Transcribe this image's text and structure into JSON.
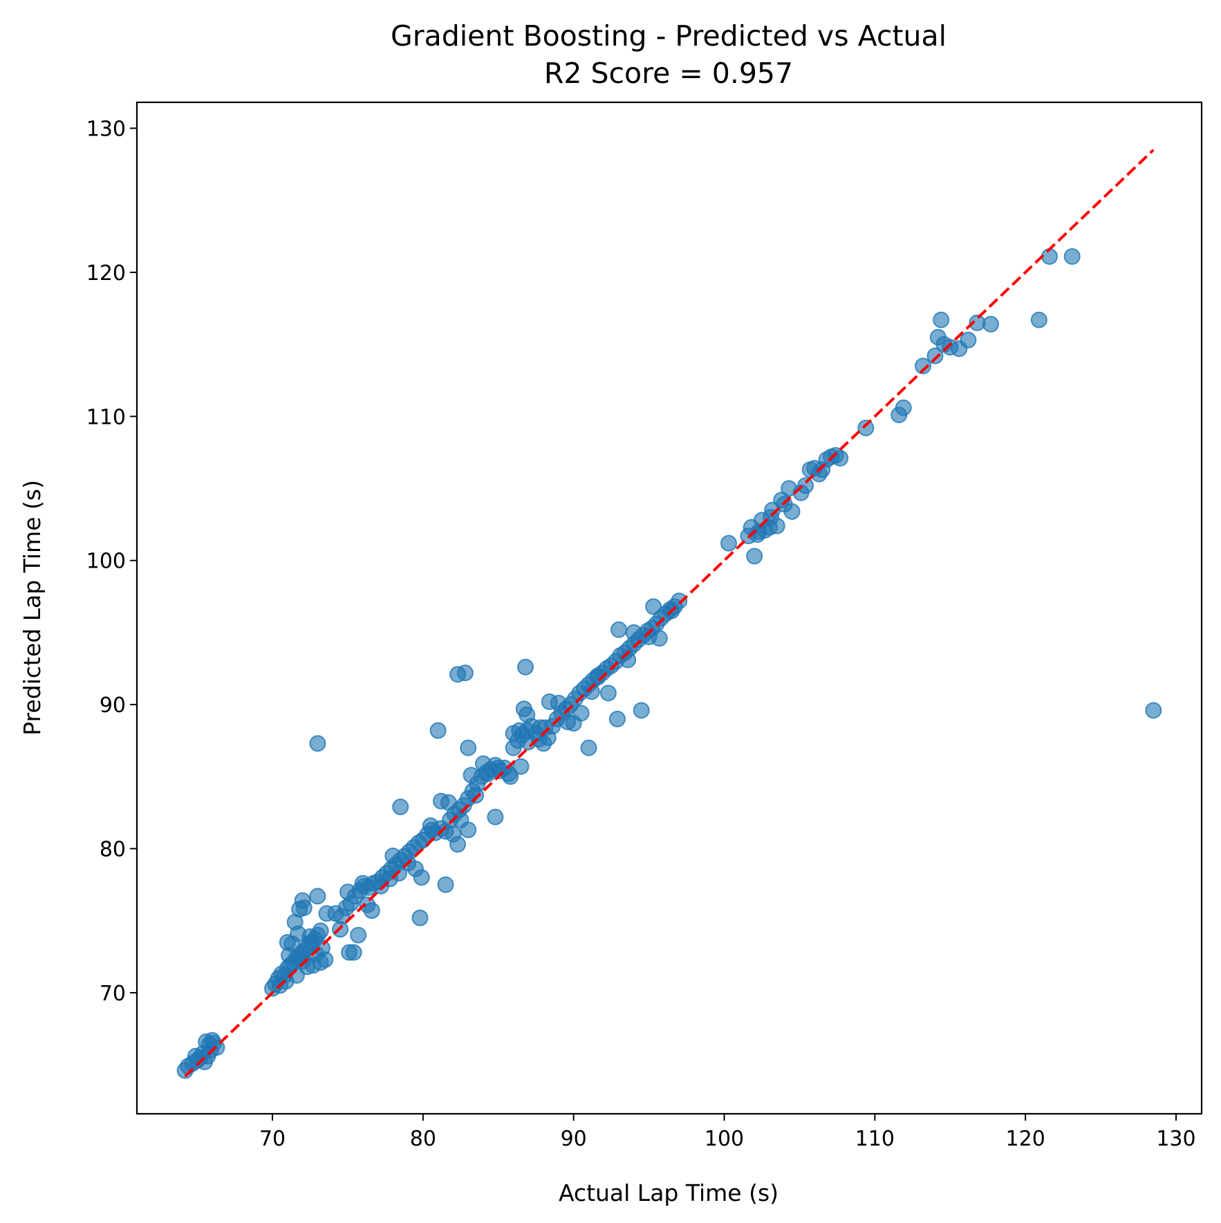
{
  "chart_data": {
    "type": "scatter",
    "title": "Gradient Boosting - Predicted vs Actual",
    "subtitle": "R2 Score = 0.957",
    "xlabel": "Actual Lap Time (s)",
    "ylabel": "Predicted Lap Time (s)",
    "xlim": [
      61.0,
      131.7
    ],
    "ylim": [
      61.6,
      131.8
    ],
    "xticks": [
      70,
      80,
      90,
      100,
      110,
      120,
      130
    ],
    "yticks": [
      70,
      80,
      90,
      100,
      110,
      120,
      130
    ],
    "grid": false,
    "point_color": "#1f77b4",
    "point_alpha": 0.6,
    "reference_line": {
      "from": [
        64.2,
        64.2
      ],
      "to": [
        128.5,
        128.5
      ],
      "color": "#ff0000",
      "style": "dashed"
    },
    "points": [
      [
        64.2,
        64.6
      ],
      [
        64.4,
        64.9
      ],
      [
        64.7,
        65.1
      ],
      [
        65.0,
        65.3
      ],
      [
        65.2,
        65.5
      ],
      [
        65.5,
        65.2
      ],
      [
        65.7,
        65.6
      ],
      [
        65.9,
        66.0
      ],
      [
        66.1,
        66.5
      ],
      [
        65.4,
        65.8
      ],
      [
        65.8,
        66.4
      ],
      [
        66.3,
        66.2
      ],
      [
        64.9,
        65.6
      ],
      [
        65.6,
        66.6
      ],
      [
        66.0,
        66.7
      ],
      [
        70.0,
        70.3
      ],
      [
        70.2,
        70.6
      ],
      [
        70.4,
        71.0
      ],
      [
        70.6,
        71.3
      ],
      [
        70.8,
        71.2
      ],
      [
        71.0,
        71.7
      ],
      [
        71.2,
        71.9
      ],
      [
        71.4,
        72.1
      ],
      [
        71.6,
        72.4
      ],
      [
        71.8,
        72.6
      ],
      [
        72.0,
        72.8
      ],
      [
        72.2,
        73.0
      ],
      [
        72.4,
        73.3
      ],
      [
        72.6,
        73.5
      ],
      [
        72.8,
        73.7
      ],
      [
        73.0,
        74.0
      ],
      [
        73.2,
        74.3
      ],
      [
        71.3,
        73.4
      ],
      [
        71.0,
        73.5
      ],
      [
        71.5,
        74.9
      ],
      [
        71.8,
        75.8
      ],
      [
        72.0,
        76.4
      ],
      [
        72.1,
        75.9
      ],
      [
        73.0,
        76.7
      ],
      [
        71.6,
        71.2
      ],
      [
        72.3,
        71.8
      ],
      [
        72.7,
        71.9
      ],
      [
        73.2,
        72.1
      ],
      [
        73.5,
        72.3
      ],
      [
        72.5,
        73.9
      ],
      [
        73.3,
        73.1
      ],
      [
        72.0,
        72.2
      ],
      [
        71.1,
        72.6
      ],
      [
        70.5,
        70.5
      ],
      [
        70.9,
        70.8
      ],
      [
        72.9,
        72.7
      ],
      [
        71.7,
        74.1
      ],
      [
        73.6,
        75.5
      ],
      [
        73.0,
        87.3
      ],
      [
        74.2,
        75.5
      ],
      [
        74.6,
        75.3
      ],
      [
        74.9,
        75.9
      ],
      [
        75.2,
        76.2
      ],
      [
        75.5,
        76.7
      ],
      [
        75.8,
        77.1
      ],
      [
        76.1,
        77.4
      ],
      [
        76.4,
        77.3
      ],
      [
        76.7,
        77.6
      ],
      [
        77.0,
        77.7
      ],
      [
        77.3,
        78.0
      ],
      [
        77.6,
        78.3
      ],
      [
        77.9,
        78.6
      ],
      [
        78.2,
        78.9
      ],
      [
        78.5,
        79.2
      ],
      [
        78.8,
        79.5
      ],
      [
        79.1,
        79.8
      ],
      [
        79.4,
        80.1
      ],
      [
        79.7,
        80.4
      ],
      [
        80.0,
        80.6
      ],
      [
        80.3,
        81.0
      ],
      [
        80.6,
        81.3
      ],
      [
        74.5,
        74.4
      ],
      [
        75.1,
        72.8
      ],
      [
        75.4,
        72.8
      ],
      [
        75.7,
        74.0
      ],
      [
        76.3,
        76.1
      ],
      [
        76.6,
        75.7
      ],
      [
        77.2,
        77.4
      ],
      [
        77.8,
        77.9
      ],
      [
        78.4,
        78.3
      ],
      [
        79.0,
        79.0
      ],
      [
        79.5,
        78.6
      ],
      [
        79.9,
        78.0
      ],
      [
        80.5,
        81.6
      ],
      [
        75.0,
        77.0
      ],
      [
        76.0,
        77.6
      ],
      [
        78.0,
        79.5
      ],
      [
        79.8,
        75.2
      ],
      [
        78.5,
        82.9
      ],
      [
        80.8,
        81.1
      ],
      [
        81.2,
        81.4
      ],
      [
        81.5,
        81.2
      ],
      [
        81.8,
        82.0
      ],
      [
        82.1,
        82.4
      ],
      [
        82.4,
        82.7
      ],
      [
        82.7,
        83.0
      ],
      [
        83.0,
        83.5
      ],
      [
        83.3,
        84.0
      ],
      [
        83.6,
        84.5
      ],
      [
        83.9,
        85.0
      ],
      [
        84.2,
        85.3
      ],
      [
        84.5,
        85.5
      ],
      [
        84.8,
        85.8
      ],
      [
        85.1,
        85.4
      ],
      [
        85.4,
        85.6
      ],
      [
        85.7,
        85.2
      ],
      [
        86.0,
        87.0
      ],
      [
        86.3,
        87.5
      ],
      [
        86.6,
        87.9
      ],
      [
        86.9,
        88.2
      ],
      [
        87.2,
        88.5
      ],
      [
        87.5,
        88.0
      ],
      [
        87.8,
        88.4
      ],
      [
        81.2,
        83.3
      ],
      [
        81.7,
        83.2
      ],
      [
        82.0,
        81.0
      ],
      [
        82.3,
        80.3
      ],
      [
        82.5,
        82.0
      ],
      [
        83.0,
        81.3
      ],
      [
        83.5,
        83.7
      ],
      [
        84.0,
        85.9
      ],
      [
        84.3,
        85.2
      ],
      [
        85.0,
        85.6
      ],
      [
        85.8,
        85.0
      ],
      [
        86.5,
        85.7
      ],
      [
        81.0,
        88.2
      ],
      [
        81.5,
        77.5
      ],
      [
        82.3,
        92.1
      ],
      [
        82.8,
        92.2
      ],
      [
        83.0,
        87.0
      ],
      [
        83.2,
        85.1
      ],
      [
        84.8,
        82.2
      ],
      [
        86.0,
        88.0
      ],
      [
        86.4,
        88.2
      ],
      [
        86.8,
        92.6
      ],
      [
        86.7,
        89.7
      ],
      [
        86.9,
        89.3
      ],
      [
        87.0,
        87.4
      ],
      [
        88.0,
        87.3
      ],
      [
        88.3,
        87.7
      ],
      [
        88.6,
        88.5
      ],
      [
        88.9,
        89.0
      ],
      [
        89.2,
        89.4
      ],
      [
        89.5,
        89.7
      ],
      [
        89.8,
        90.0
      ],
      [
        90.1,
        90.4
      ],
      [
        90.4,
        90.8
      ],
      [
        90.7,
        91.1
      ],
      [
        91.0,
        91.4
      ],
      [
        91.3,
        91.7
      ],
      [
        91.6,
        91.9
      ],
      [
        91.9,
        92.2
      ],
      [
        92.2,
        92.5
      ],
      [
        92.5,
        92.7
      ],
      [
        92.8,
        93.0
      ],
      [
        93.1,
        93.4
      ],
      [
        93.4,
        93.6
      ],
      [
        93.7,
        93.9
      ],
      [
        94.0,
        94.2
      ],
      [
        94.3,
        94.5
      ],
      [
        94.6,
        94.8
      ],
      [
        94.9,
        95.1
      ],
      [
        95.2,
        95.3
      ],
      [
        95.5,
        95.6
      ],
      [
        95.8,
        96.0
      ],
      [
        96.1,
        96.3
      ],
      [
        96.4,
        96.6
      ],
      [
        96.7,
        96.8
      ],
      [
        97.0,
        97.2
      ],
      [
        88.4,
        90.2
      ],
      [
        89.0,
        90.1
      ],
      [
        89.6,
        88.8
      ],
      [
        90.0,
        88.7
      ],
      [
        90.5,
        89.4
      ],
      [
        91.2,
        90.9
      ],
      [
        91.6,
        92.0
      ],
      [
        92.3,
        90.8
      ],
      [
        92.9,
        89.0
      ],
      [
        93.0,
        95.2
      ],
      [
        93.6,
        93.1
      ],
      [
        94.0,
        95.0
      ],
      [
        94.5,
        89.6
      ],
      [
        95.0,
        94.7
      ],
      [
        95.3,
        96.8
      ],
      [
        95.7,
        94.6
      ],
      [
        96.5,
        96.5
      ],
      [
        91.0,
        87.0
      ],
      [
        87.7,
        87.6
      ],
      [
        88.1,
        88.4
      ],
      [
        100.3,
        101.2
      ],
      [
        101.6,
        101.7
      ],
      [
        101.8,
        102.3
      ],
      [
        102.0,
        100.3
      ],
      [
        102.3,
        102.0
      ],
      [
        102.5,
        102.8
      ],
      [
        102.7,
        102.1
      ],
      [
        103.0,
        102.3
      ],
      [
        103.2,
        103.5
      ],
      [
        103.5,
        102.4
      ],
      [
        103.8,
        104.2
      ],
      [
        104.0,
        103.9
      ],
      [
        104.3,
        105.0
      ],
      [
        104.5,
        103.4
      ],
      [
        105.1,
        104.7
      ],
      [
        105.4,
        105.2
      ],
      [
        105.7,
        106.3
      ],
      [
        106.0,
        106.4
      ],
      [
        106.3,
        106.0
      ],
      [
        106.5,
        106.3
      ],
      [
        106.8,
        107.0
      ],
      [
        107.1,
        107.2
      ],
      [
        107.4,
        107.3
      ],
      [
        107.7,
        107.1
      ],
      [
        102.2,
        101.8
      ],
      [
        103.1,
        103.0
      ],
      [
        109.4,
        109.2
      ],
      [
        111.6,
        110.1
      ],
      [
        111.9,
        110.6
      ],
      [
        113.2,
        113.5
      ],
      [
        114.0,
        114.2
      ],
      [
        114.2,
        115.5
      ],
      [
        114.4,
        116.7
      ],
      [
        114.6,
        115.0
      ],
      [
        115.0,
        114.8
      ],
      [
        115.6,
        114.7
      ],
      [
        116.2,
        115.3
      ],
      [
        116.8,
        116.5
      ],
      [
        117.7,
        116.4
      ],
      [
        120.9,
        116.7
      ],
      [
        121.6,
        121.1
      ],
      [
        123.1,
        121.1
      ],
      [
        128.5,
        89.6
      ]
    ]
  }
}
